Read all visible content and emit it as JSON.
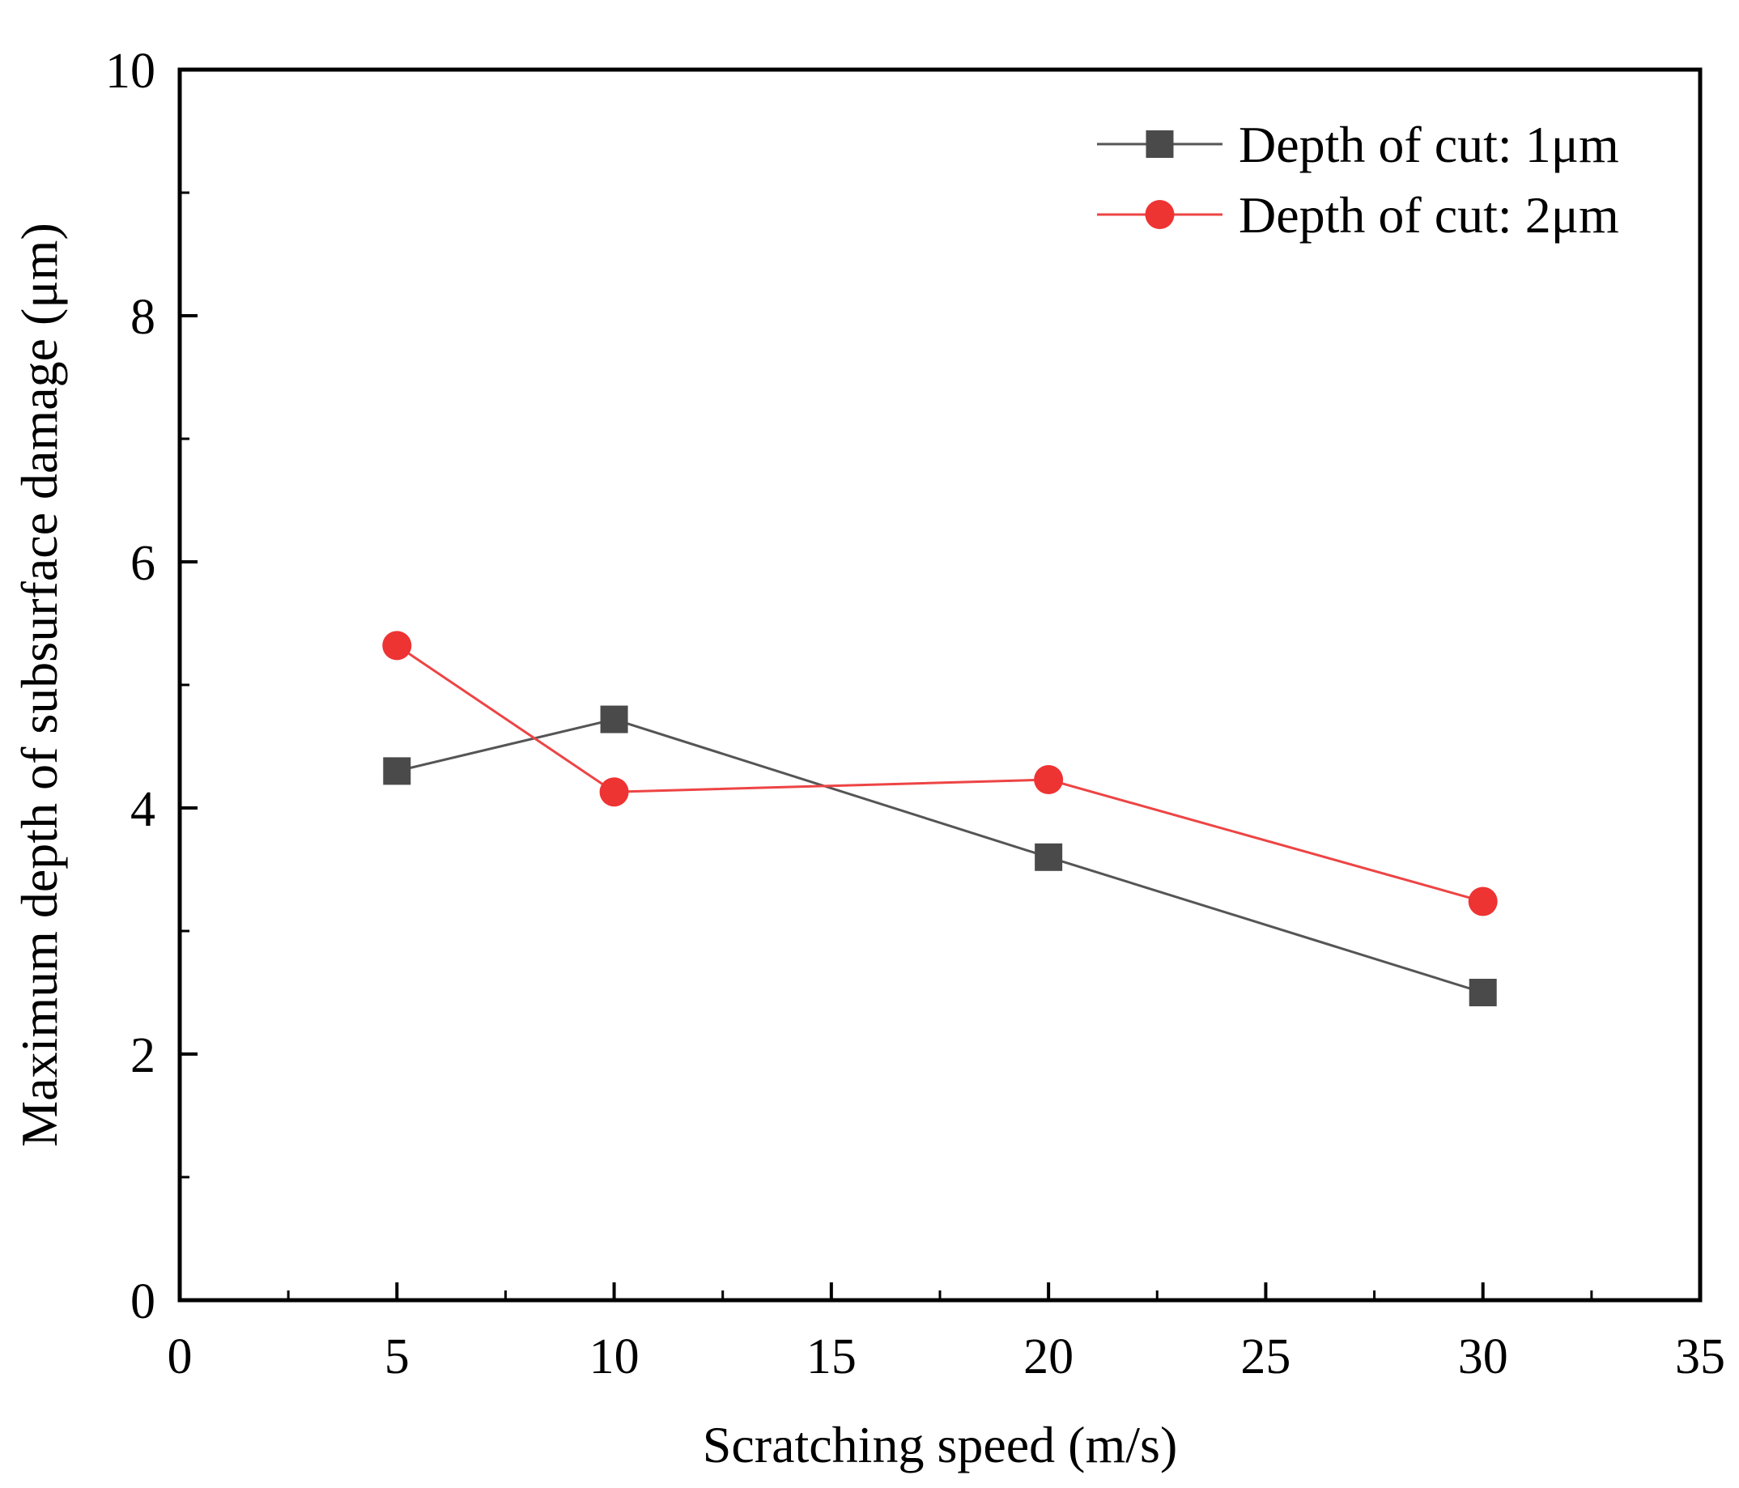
{
  "chart_data": {
    "type": "line",
    "title": "",
    "xlabel": "Scratching speed (m/s)",
    "ylabel": "Maximum depth of subsurface damage (μm)",
    "xlim": [
      0,
      35
    ],
    "ylim": [
      0,
      10
    ],
    "xticks": [
      0,
      5,
      10,
      15,
      20,
      25,
      30,
      35
    ],
    "yticks": [
      0,
      2,
      4,
      6,
      8,
      10
    ],
    "xtick_labels": [
      "0",
      "5",
      "10",
      "15",
      "20",
      "25",
      "30",
      "35"
    ],
    "ytick_labels": [
      "0",
      "2",
      "4",
      "6",
      "8",
      "10"
    ],
    "grid": false,
    "legend_position": "top-right",
    "series": [
      {
        "name": "Depth of cut: 1μm",
        "marker": "square",
        "color": "#4a4a4a",
        "line_color": "#555555",
        "x": [
          5,
          10,
          20,
          30
        ],
        "y": [
          4.3,
          4.72,
          3.6,
          2.5
        ]
      },
      {
        "name": "Depth of cut: 2μm",
        "marker": "circle",
        "color": "#ee3333",
        "line_color": "#ee4444",
        "x": [
          5,
          10,
          20,
          30
        ],
        "y": [
          5.32,
          4.13,
          4.23,
          3.24
        ]
      }
    ]
  }
}
